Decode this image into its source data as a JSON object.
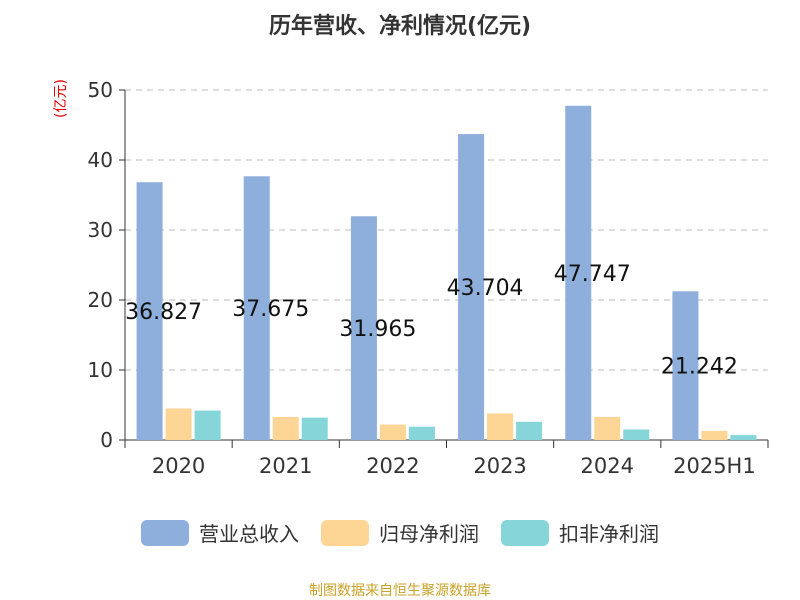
{
  "chart_data": {
    "type": "bar",
    "title": "历年营收、净利情况(亿元)",
    "ylabel": "(亿元)",
    "categories": [
      "2020",
      "2021",
      "2022",
      "2023",
      "2024",
      "2025H1"
    ],
    "ylim": [
      0,
      50
    ],
    "yticks": [
      0,
      10,
      20,
      30,
      40,
      50
    ],
    "grid": true,
    "legend_position": "bottom",
    "series": [
      {
        "name": "营业总收入",
        "color": "#8eaedc",
        "values": [
          36.827,
          37.675,
          31.965,
          43.704,
          47.747,
          21.242
        ],
        "labels": [
          "36.827",
          "37.675",
          "31.965",
          "43.704",
          "47.747",
          "21.242"
        ]
      },
      {
        "name": "归母净利润",
        "color": "#fdd696",
        "values": [
          4.5,
          3.3,
          2.2,
          3.8,
          3.3,
          1.3
        ]
      },
      {
        "name": "扣非净利润",
        "color": "#86d5d8",
        "values": [
          4.2,
          3.2,
          1.9,
          2.6,
          1.5,
          0.7
        ]
      }
    ]
  },
  "footer": {
    "source": "制图数据来自恒生聚源数据库"
  }
}
